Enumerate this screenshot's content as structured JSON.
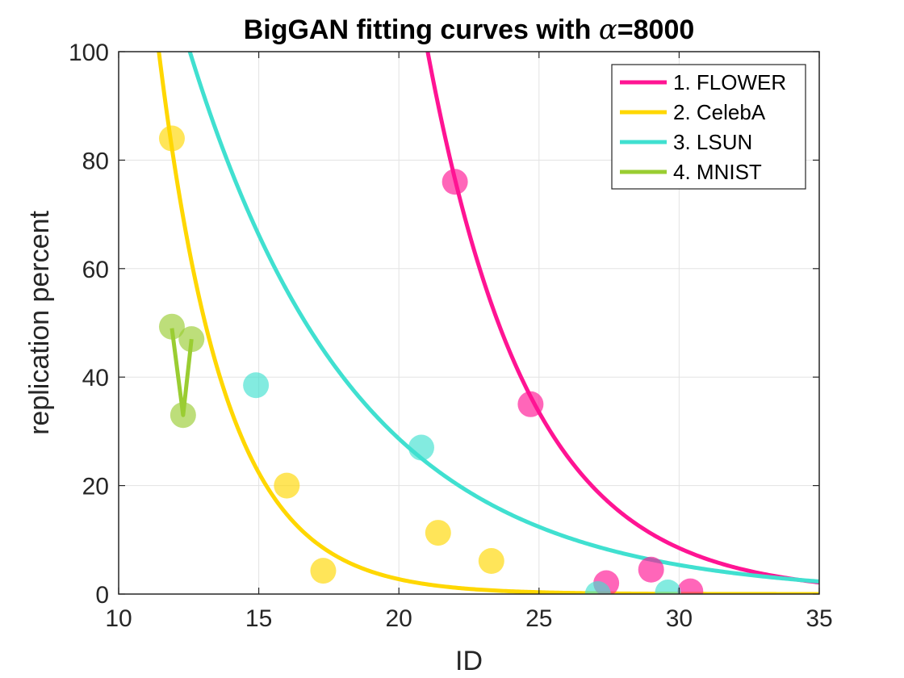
{
  "chart_data": {
    "type": "scatter",
    "title": "BigGAN fitting curves with α=8000",
    "title_prefix": "BigGAN fitting curves with ",
    "title_symbol": "α",
    "title_suffix": "=8000",
    "xlabel": "ID",
    "ylabel": "replication percent",
    "xlim": [
      10,
      35
    ],
    "ylim": [
      0,
      100
    ],
    "xticks": [
      10,
      15,
      20,
      25,
      30,
      35
    ],
    "xtick_labels": [
      "10",
      "15",
      "20",
      "25",
      "30",
      "35"
    ],
    "yticks": [
      0,
      20,
      40,
      60,
      80,
      100
    ],
    "ytick_labels": [
      "0",
      "20",
      "40",
      "60",
      "80",
      "100"
    ],
    "grid": true,
    "legend_position": "top-right",
    "series": [
      {
        "name": "1. FLOWER",
        "color": "#FF1493",
        "points": [
          [
            22.0,
            76.0
          ],
          [
            24.7,
            35.0
          ],
          [
            27.4,
            2.0
          ],
          [
            29.0,
            4.5
          ],
          [
            30.4,
            0.5
          ]
        ],
        "curve": {
          "form": "exponential",
          "a": 32450,
          "b": 0.275
        }
      },
      {
        "name": "2. CelebA",
        "color": "#FFD700",
        "points": [
          [
            11.9,
            84.0
          ],
          [
            16.0,
            20.0
          ],
          [
            17.3,
            4.3
          ],
          [
            21.4,
            11.3
          ],
          [
            23.3,
            6.1
          ]
        ],
        "curve": {
          "form": "exponential",
          "a": 12180,
          "b": 0.42
        }
      },
      {
        "name": "3. LSUN",
        "color": "#40E0D0",
        "points": [
          [
            14.9,
            38.5
          ],
          [
            20.8,
            27.0
          ],
          [
            27.1,
            0.0
          ],
          [
            29.6,
            0.3
          ]
        ],
        "curve": {
          "form": "exponential",
          "a": 818,
          "b": 0.1676
        }
      },
      {
        "name": "4. MNIST",
        "color": "#9ACD32",
        "points": [
          [
            11.9,
            49.3
          ],
          [
            12.3,
            33.0
          ],
          [
            12.6,
            47.0
          ]
        ],
        "curve": {
          "form": "polyline",
          "points": [
            [
              11.9,
              49.0
            ],
            [
              12.3,
              33.0
            ],
            [
              12.6,
              47.0
            ]
          ]
        }
      }
    ]
  }
}
